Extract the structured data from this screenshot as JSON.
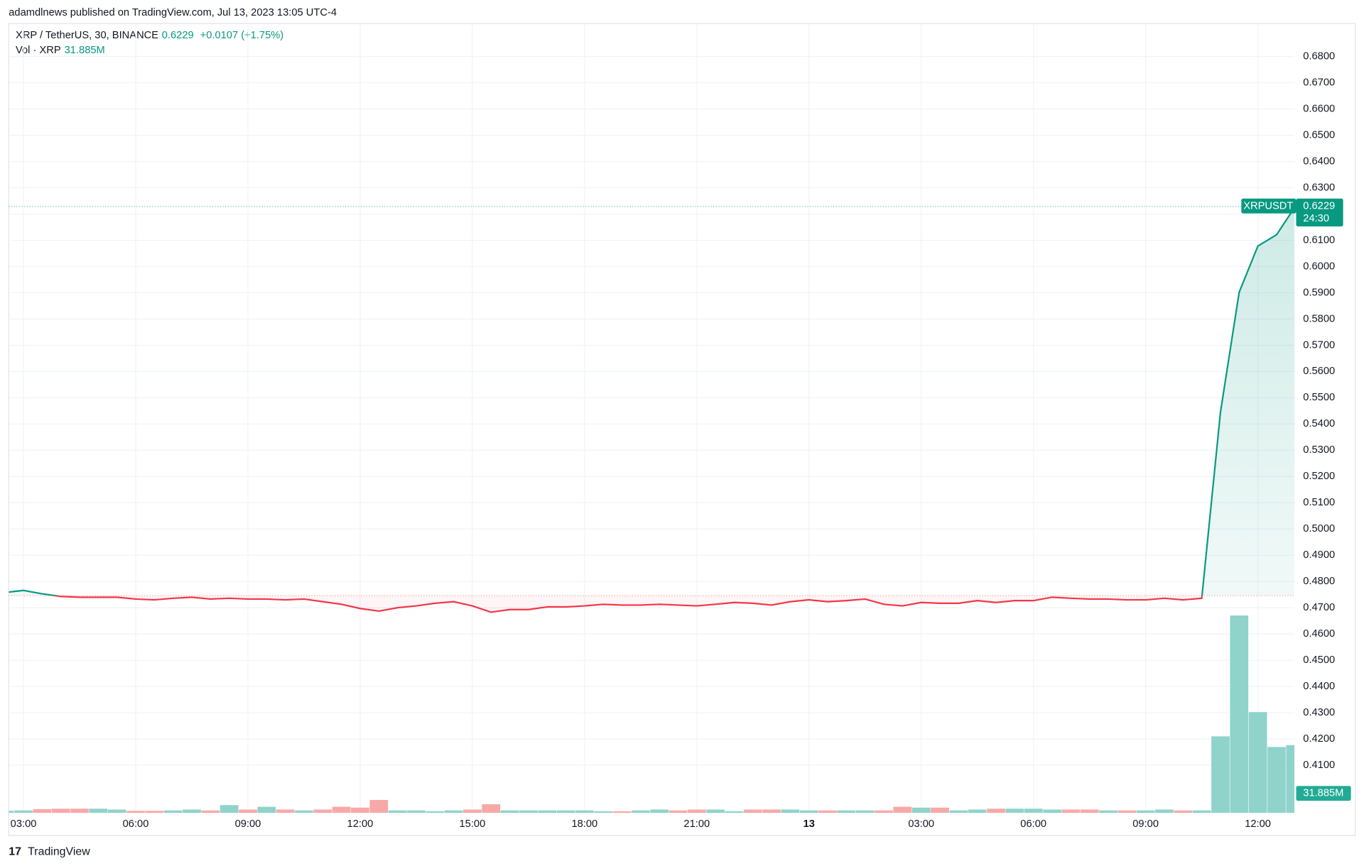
{
  "header": {
    "publisher": "adamdlnews published on TradingView.com, Jul 13, 2023 13:05 UTC-4",
    "footer": "TradingView"
  },
  "chart_data": {
    "type": "line",
    "symbol": "XRP / TetherUS, 30, BINANCE",
    "change": "+0.0107 (+1.75%)",
    "countdown": "24:30",
    "categories": [
      null,
      "03:00",
      null,
      null,
      null,
      null,
      null,
      "06:00",
      null,
      null,
      null,
      null,
      null,
      "09:00",
      null,
      null,
      null,
      null,
      null,
      "12:00",
      null,
      null,
      null,
      null,
      null,
      "15:00",
      null,
      null,
      null,
      null,
      null,
      "18:00",
      null,
      null,
      null,
      null,
      null,
      "21:00",
      null,
      null,
      null,
      null,
      null,
      "13",
      null,
      null,
      null,
      null,
      null,
      "03:00",
      null,
      null,
      null,
      null,
      null,
      "06:00",
      null,
      null,
      null,
      null,
      null,
      "09:00",
      null,
      null,
      null,
      null,
      null,
      "12:00",
      null,
      null
    ],
    "series": [
      {
        "name": "XRPUSDT",
        "up_color": "#089981",
        "down_color": "#f23645",
        "values": [
          0.4758,
          0.4766,
          0.4753,
          0.4743,
          0.474,
          0.474,
          0.474,
          0.4733,
          0.473,
          0.4736,
          0.474,
          0.4733,
          0.4736,
          0.4733,
          0.4733,
          0.473,
          0.4733,
          0.4723,
          0.4713,
          0.4697,
          0.4687,
          0.47,
          0.4707,
          0.4717,
          0.4723,
          0.4707,
          0.4683,
          0.4693,
          0.4693,
          0.4703,
          0.4703,
          0.4707,
          0.4713,
          0.471,
          0.471,
          0.4713,
          0.471,
          0.4707,
          0.4713,
          0.472,
          0.4717,
          0.471,
          0.4723,
          0.473,
          0.4723,
          0.4727,
          0.4733,
          0.4713,
          0.4707,
          0.472,
          0.4717,
          0.4717,
          0.4727,
          0.472,
          0.4727,
          0.4727,
          0.474,
          0.4736,
          0.4733,
          0.4733,
          0.473,
          0.473,
          0.4736,
          0.473,
          0.4736,
          0.5445,
          0.5902,
          0.6078,
          0.6121,
          0.6229
        ]
      }
    ],
    "baseline": 0.4746,
    "ylim": [
      0.3918,
      0.6926
    ],
    "grid": true,
    "yticks": [
      {
        "value": 0.41,
        "label": "0.4100"
      },
      {
        "value": 0.42,
        "label": "0.4200"
      },
      {
        "value": 0.43,
        "label": "0.4300"
      },
      {
        "value": 0.44,
        "label": "0.4400"
      },
      {
        "value": 0.45,
        "label": "0.4500"
      },
      {
        "value": 0.46,
        "label": "0.4600"
      },
      {
        "value": 0.47,
        "label": "0.4700"
      },
      {
        "value": 0.48,
        "label": "0.4800"
      },
      {
        "value": 0.49,
        "label": "0.4900"
      },
      {
        "value": 0.5,
        "label": "0.5000"
      },
      {
        "value": 0.51,
        "label": "0.5100"
      },
      {
        "value": 0.52,
        "label": "0.5200"
      },
      {
        "value": 0.53,
        "label": "0.5300"
      },
      {
        "value": 0.54,
        "label": "0.5400"
      },
      {
        "value": 0.55,
        "label": "0.5500"
      },
      {
        "value": 0.56,
        "label": "0.5600"
      },
      {
        "value": 0.57,
        "label": "0.5700"
      },
      {
        "value": 0.58,
        "label": "0.5800"
      },
      {
        "value": 0.59,
        "label": "0.5900"
      },
      {
        "value": 0.6,
        "label": "0.6000"
      },
      {
        "value": 0.61,
        "label": "0.6100"
      },
      {
        "value": 0.62,
        "label": "0.6200"
      },
      {
        "value": 0.63,
        "label": "0.6300"
      },
      {
        "value": 0.64,
        "label": "0.6400"
      },
      {
        "value": 0.65,
        "label": "0.6500"
      },
      {
        "value": 0.66,
        "label": "0.6600"
      },
      {
        "value": 0.67,
        "label": "0.6700"
      },
      {
        "value": 0.68,
        "label": "0.6800"
      }
    ],
    "volume": {
      "name": "Vol · XRP",
      "last_label": "31.885M",
      "up_color": "#8fd3cb",
      "down_color": "#f7a9a7",
      "ylim": [
        0,
        371
      ],
      "values": [
        1.0,
        1.2,
        1.8,
        2.0,
        2.0,
        2.0,
        1.6,
        1.0,
        1.0,
        1.2,
        1.6,
        1.2,
        3.7,
        1.6,
        2.9,
        1.6,
        1.2,
        1.6,
        2.9,
        2.5,
        6.1,
        1.2,
        1.2,
        0.8,
        1.2,
        1.6,
        4.1,
        1.2,
        1.2,
        1.2,
        1.2,
        1.2,
        0.8,
        0.8,
        1.2,
        1.6,
        1.2,
        1.6,
        1.6,
        0.8,
        1.6,
        1.6,
        1.6,
        1.2,
        1.2,
        1.2,
        1.2,
        1.2,
        2.9,
        2.5,
        2.5,
        1.2,
        1.6,
        2.0,
        2.0,
        2.0,
        1.6,
        1.6,
        1.6,
        1.2,
        1.2,
        1.2,
        1.6,
        1.2,
        1.2,
        36.0,
        92.8,
        47.4,
        31.0,
        31.885
      ]
    }
  }
}
